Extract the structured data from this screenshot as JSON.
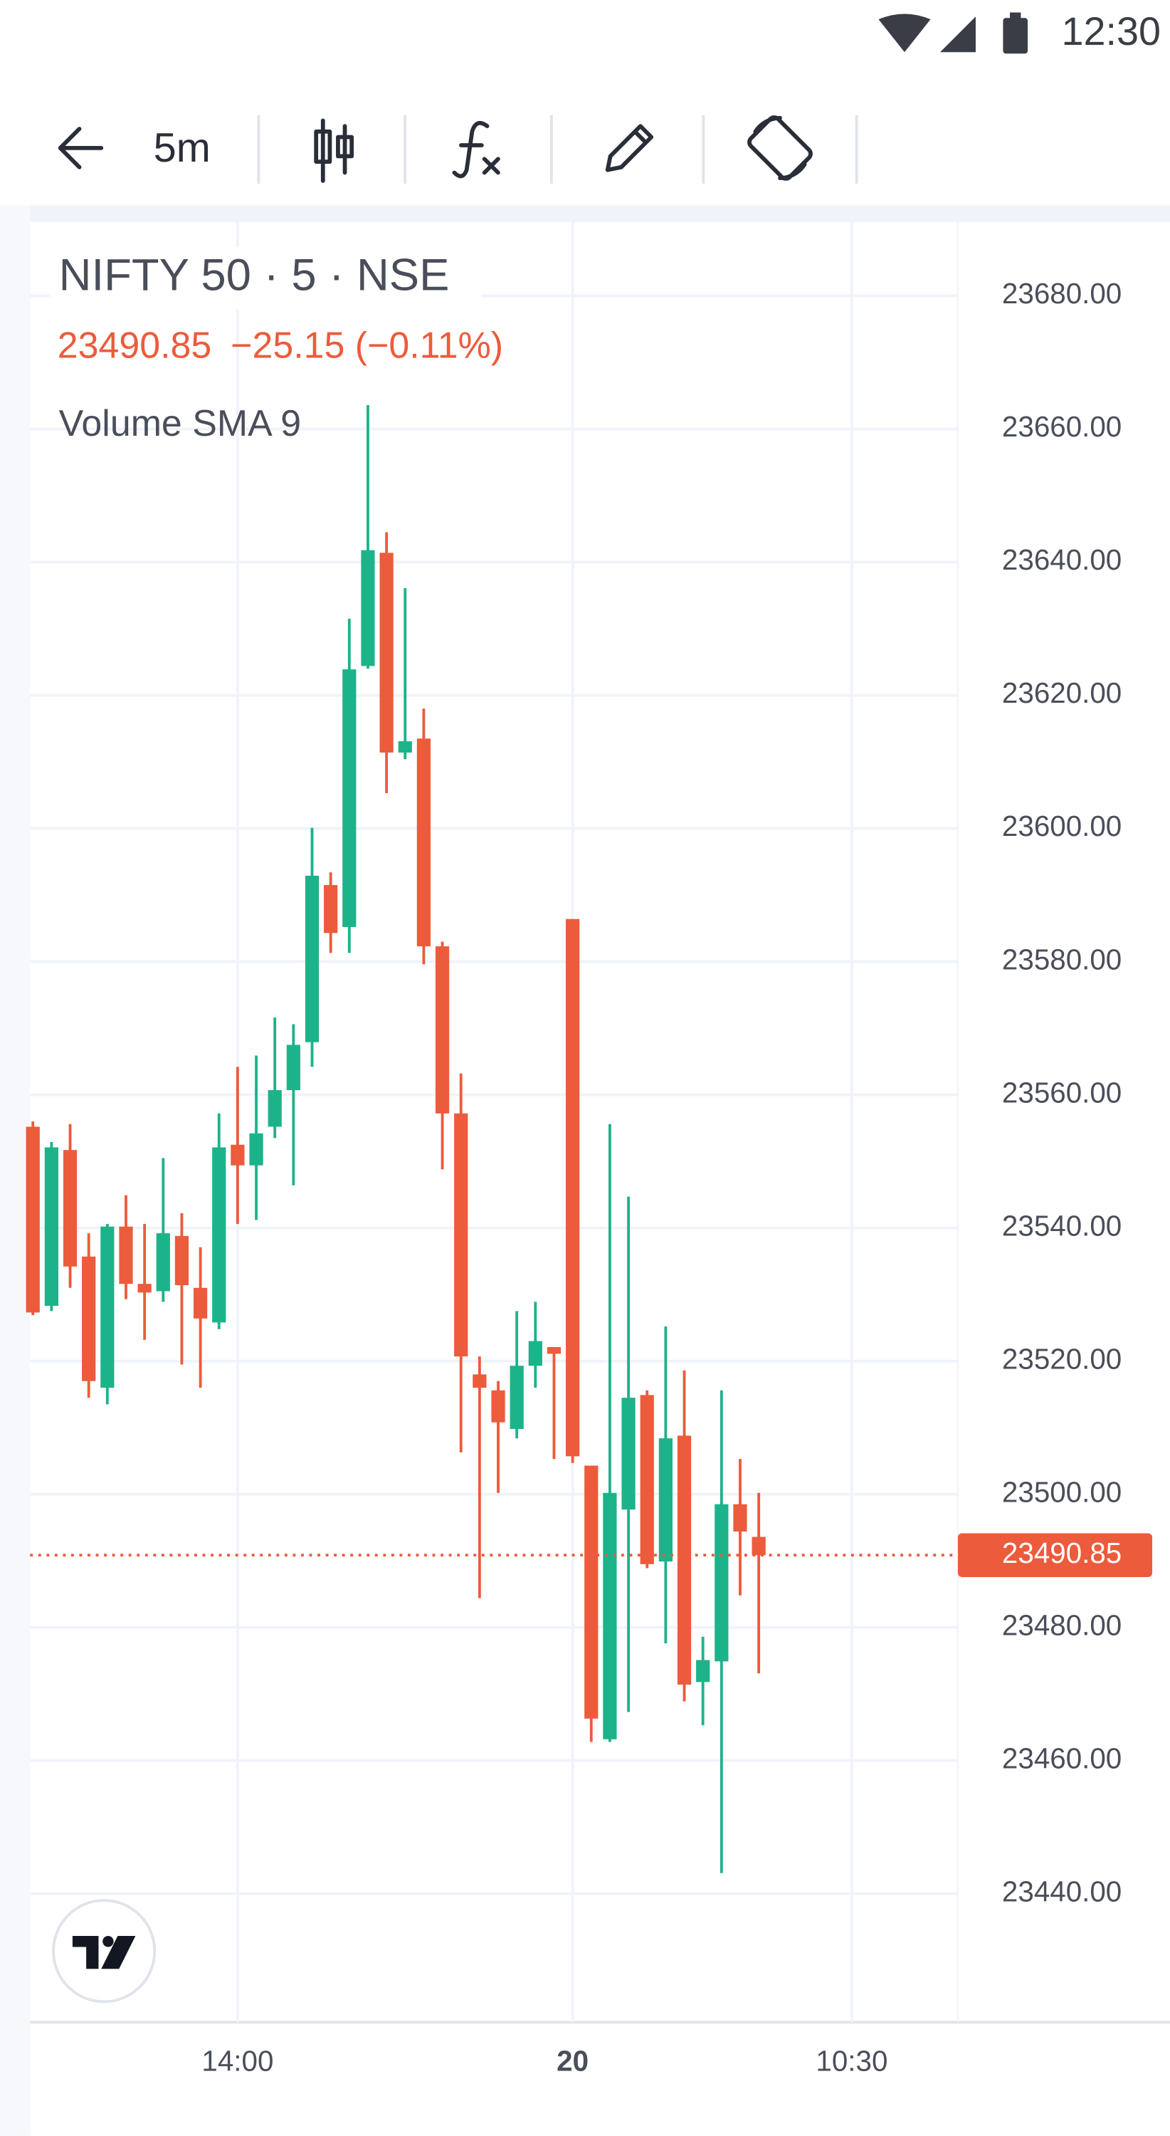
{
  "status_bar": {
    "time": "12:30"
  },
  "toolbar": {
    "interval": "5m"
  },
  "chart_data": {
    "type": "candlestick",
    "title": "NIFTY 50 · 5 · NSE",
    "change": "−25.15 (−0.11%)",
    "indicator": "Volume SMA 9",
    "up_color": "#1db38a",
    "down_color": "#ec5b3c",
    "grid": true,
    "open": [
      23555.2,
      23528.3,
      23551.7,
      23535.7,
      23516.0,
      23540.2,
      23531.6,
      23530.5,
      23538.8,
      23531.0,
      23525.8,
      23552.5,
      23549.4,
      23555.2,
      23560.7,
      23567.9,
      23591.5,
      23585.2,
      23624.4,
      23641.4,
      23611.4,
      23613.5,
      23582.3,
      23557.2,
      23518.0,
      23515.6,
      23509.8,
      23519.3,
      23522.1,
      23586.4,
      23504.3,
      23463.2,
      23497.7,
      23514.9,
      23489.9,
      23508.8,
      23471.8,
      23474.9,
      23498.5,
      23493.6
    ],
    "high": [
      23556.0,
      23552.9,
      23555.6,
      23539.2,
      23540.6,
      23544.9,
      23540.6,
      23550.5,
      23542.2,
      23537.1,
      23557.2,
      23564.2,
      23565.9,
      23571.6,
      23570.6,
      23600.1,
      23593.4,
      23631.5,
      23663.6,
      23644.5,
      23636.1,
      23618.0,
      23583.0,
      23563.2,
      23520.7,
      23517.0,
      23527.5,
      23528.9,
      23522.1,
      23586.4,
      23504.3,
      23555.6,
      23544.7,
      23515.6,
      23525.2,
      23518.6,
      23478.6,
      23515.6,
      23505.3,
      23500.2
    ],
    "low": [
      23526.9,
      23527.5,
      23531.0,
      23514.5,
      23513.5,
      23529.3,
      23523.2,
      23528.9,
      23519.5,
      23516.0,
      23524.8,
      23540.6,
      23541.2,
      23553.5,
      23546.4,
      23564.2,
      23581.3,
      23581.3,
      23624.0,
      23605.3,
      23610.4,
      23579.6,
      23548.8,
      23506.3,
      23484.4,
      23500.2,
      23508.4,
      23516.0,
      23505.3,
      23504.7,
      23462.8,
      23462.8,
      23467.3,
      23488.9,
      23477.6,
      23468.9,
      23465.3,
      23443.1,
      23484.8,
      23473.1
    ],
    "close": [
      23527.3,
      23552.1,
      23534.2,
      23517.0,
      23540.2,
      23531.6,
      23530.3,
      23539.2,
      23531.4,
      23526.4,
      23552.1,
      23549.4,
      23554.2,
      23560.7,
      23567.5,
      23592.9,
      23584.3,
      23623.9,
      23641.8,
      23611.4,
      23613.1,
      23582.3,
      23557.2,
      23520.7,
      23516.0,
      23510.8,
      23519.3,
      23523.0,
      23521.1,
      23505.7,
      23466.3,
      23500.2,
      23514.5,
      23489.5,
      23508.4,
      23471.4,
      23475.1,
      23498.5,
      23494.4,
      23490.85
    ],
    "last_price": 23490.85,
    "xlim": [
      -0.15,
      49.7
    ],
    "xticks": [
      {
        "value": 11,
        "label": "14:00"
      },
      {
        "value": 29,
        "label": "20"
      },
      {
        "value": 44,
        "label": "10:30"
      }
    ],
    "ylim": [
      23420.7,
      23691.1
    ],
    "yticks": [
      {
        "value": 23440,
        "label": "23440.00"
      },
      {
        "value": 23460,
        "label": "23460.00"
      },
      {
        "value": 23480,
        "label": "23480.00"
      },
      {
        "value": 23500,
        "label": "23500.00"
      },
      {
        "value": 23520,
        "label": "23520.00"
      },
      {
        "value": 23540,
        "label": "23540.00"
      },
      {
        "value": 23560,
        "label": "23560.00"
      },
      {
        "value": 23580,
        "label": "23580.00"
      },
      {
        "value": 23600,
        "label": "23600.00"
      },
      {
        "value": 23620,
        "label": "23620.00"
      },
      {
        "value": 23640,
        "label": "23640.00"
      },
      {
        "value": 23660,
        "label": "23660.00"
      },
      {
        "value": 23680,
        "label": "23680.00"
      }
    ]
  }
}
